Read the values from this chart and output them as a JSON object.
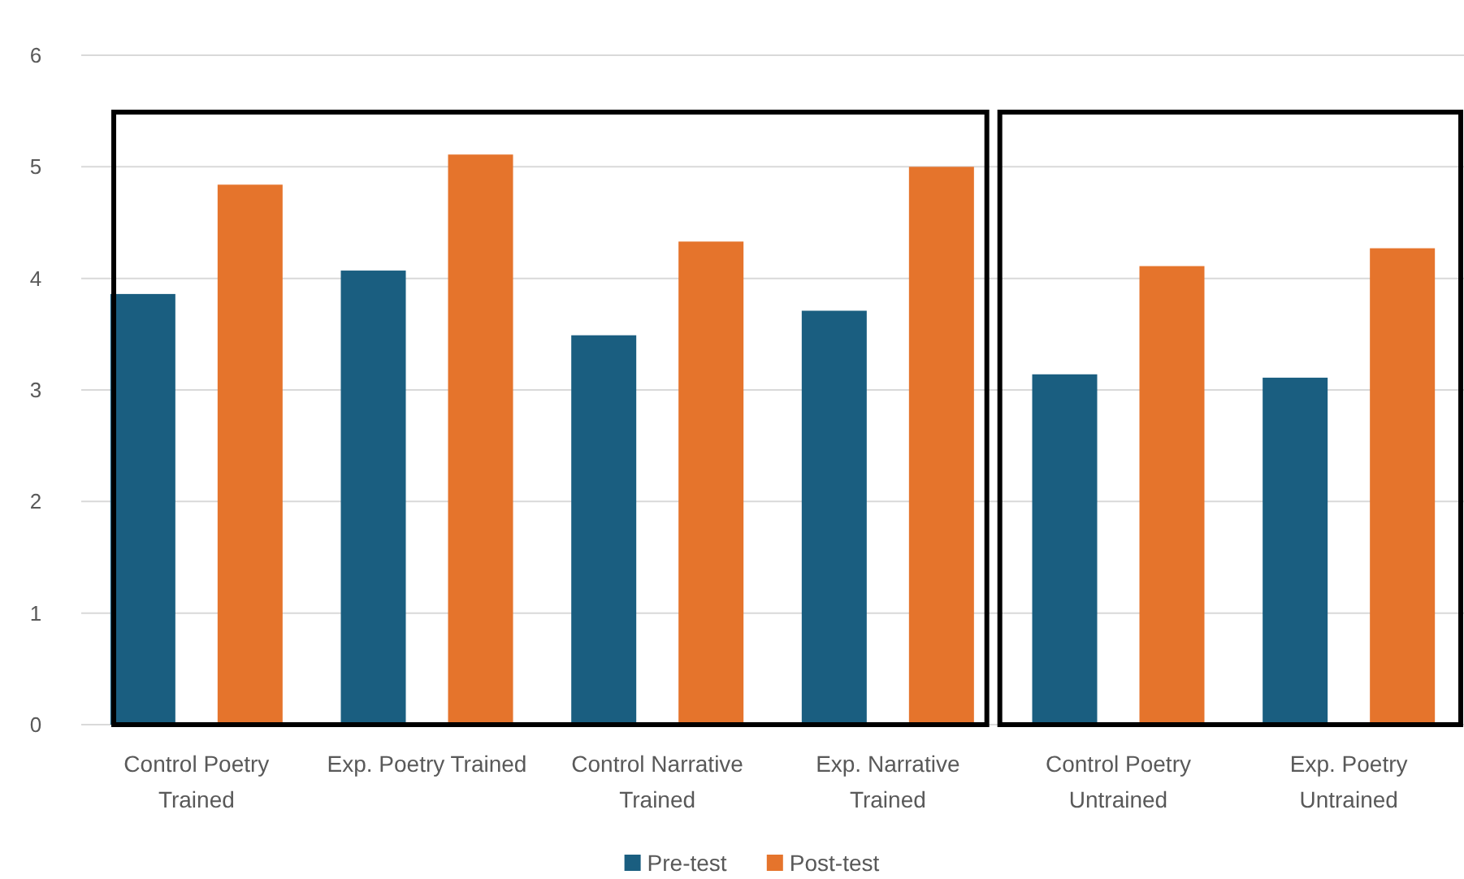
{
  "chart_data": {
    "type": "bar",
    "categories": [
      "Control Poetry Trained",
      "Exp. Poetry Trained",
      "Control Narrative Trained",
      "Exp. Narrative Trained",
      "Control Poetry Untrained",
      "Exp. Poetry Untrained"
    ],
    "series": [
      {
        "name": "Pre-test",
        "color": "#1a5e80",
        "values": [
          3.86,
          4.07,
          3.49,
          3.71,
          3.14,
          3.11
        ]
      },
      {
        "name": "Post-test",
        "color": "#e5742c",
        "values": [
          4.84,
          5.11,
          4.33,
          5.0,
          4.11,
          4.27
        ]
      }
    ],
    "ylim": [
      0,
      6
    ],
    "yticks": [
      0,
      1,
      2,
      3,
      4,
      5,
      6
    ],
    "grid": "y",
    "legend": "bottom"
  }
}
